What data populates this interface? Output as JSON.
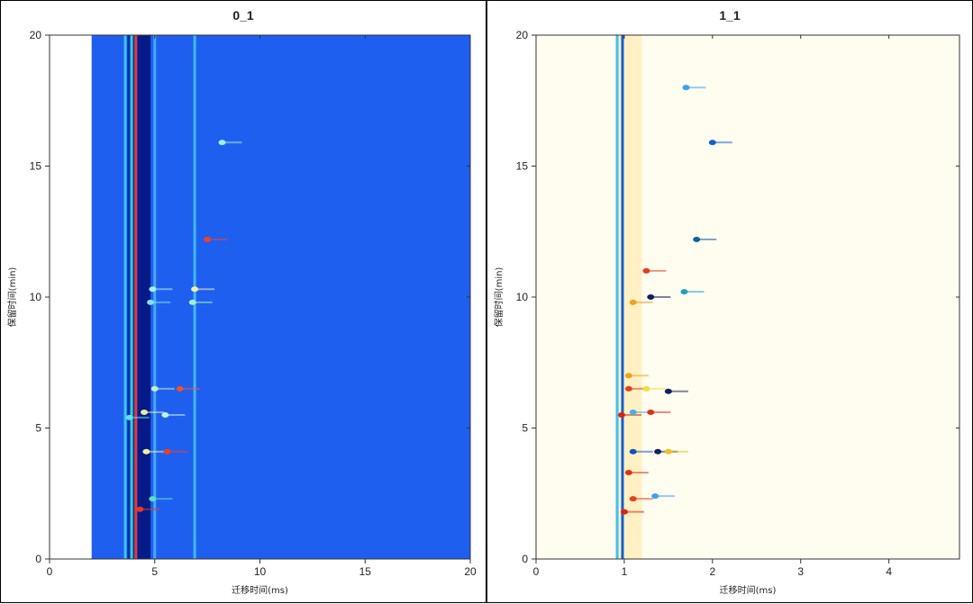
{
  "chart_data": [
    {
      "type": "heatmap",
      "title": "0_1",
      "xlabel": "迁移时间(ms)",
      "ylabel": "保留时间(min)",
      "xlim": [
        0,
        20
      ],
      "ylim": [
        0,
        20
      ],
      "xticks": [
        0,
        5,
        10,
        15,
        20
      ],
      "yticks": [
        0,
        5,
        10,
        15,
        20
      ],
      "data_x_start": 2.0,
      "background_color": "#1f5ff0",
      "reactant_ion_peak": {
        "x_center": 4.2,
        "x_range": [
          3.7,
          4.8
        ]
      },
      "vertical_lines": [
        {
          "x": 3.6,
          "color": "#38c7e8"
        },
        {
          "x": 3.9,
          "color": "#35d0c0"
        },
        {
          "x": 4.1,
          "color": "#e8382a"
        },
        {
          "x": 5.0,
          "color": "#44aaf0"
        },
        {
          "x": 6.9,
          "color": "#40b8f0"
        }
      ],
      "spots": [
        {
          "x": 4.3,
          "y": 1.9,
          "color": "#e83a20"
        },
        {
          "x": 4.9,
          "y": 2.3,
          "color": "#58e0c0"
        },
        {
          "x": 4.6,
          "y": 4.1,
          "color": "#f0f0a0"
        },
        {
          "x": 5.6,
          "y": 4.1,
          "color": "#f04020"
        },
        {
          "x": 3.8,
          "y": 5.4,
          "color": "#60e0f0"
        },
        {
          "x": 4.5,
          "y": 5.6,
          "color": "#e0f0a0"
        },
        {
          "x": 5.5,
          "y": 5.5,
          "color": "#c0f0e0"
        },
        {
          "x": 5.0,
          "y": 6.5,
          "color": "#c0f0c0"
        },
        {
          "x": 6.2,
          "y": 6.5,
          "color": "#f05030"
        },
        {
          "x": 4.8,
          "y": 9.8,
          "color": "#80e0f0"
        },
        {
          "x": 6.8,
          "y": 9.8,
          "color": "#a0f0d0"
        },
        {
          "x": 4.9,
          "y": 10.3,
          "color": "#a0f0f0"
        },
        {
          "x": 6.9,
          "y": 10.3,
          "color": "#f0f0a0"
        },
        {
          "x": 7.5,
          "y": 12.2,
          "color": "#f04020"
        },
        {
          "x": 8.2,
          "y": 15.9,
          "color": "#a0f0f0"
        }
      ]
    },
    {
      "type": "heatmap",
      "title": "1_1",
      "xlabel": "迁移时间(ms)",
      "ylabel": "保留时间(min)",
      "xlim": [
        0,
        4.8
      ],
      "ylim": [
        0,
        20
      ],
      "xticks": [
        0,
        1,
        2,
        3,
        4
      ],
      "yticks": [
        0,
        5,
        10,
        15,
        20
      ],
      "background_color": "#fffdf0",
      "reactant_ion_peak": {
        "x_center": 1.0,
        "x_range": [
          0.9,
          1.2
        ]
      },
      "vertical_lines": [
        {
          "x": 0.92,
          "color": "#40c0f0"
        },
        {
          "x": 0.98,
          "color": "#1060d0"
        }
      ],
      "spots": [
        {
          "x": 1.0,
          "y": 1.8,
          "color": "#e02010"
        },
        {
          "x": 1.1,
          "y": 2.3,
          "color": "#e04020"
        },
        {
          "x": 1.35,
          "y": 2.4,
          "color": "#40a0f0"
        },
        {
          "x": 1.05,
          "y": 3.3,
          "color": "#e03010"
        },
        {
          "x": 1.1,
          "y": 4.1,
          "color": "#1050c0"
        },
        {
          "x": 1.38,
          "y": 4.1,
          "color": "#102060"
        },
        {
          "x": 1.5,
          "y": 4.1,
          "color": "#f0c020"
        },
        {
          "x": 0.97,
          "y": 5.5,
          "color": "#e02010"
        },
        {
          "x": 1.1,
          "y": 5.6,
          "color": "#40b0f0"
        },
        {
          "x": 1.3,
          "y": 5.6,
          "color": "#e03010"
        },
        {
          "x": 1.05,
          "y": 6.5,
          "color": "#e04020"
        },
        {
          "x": 1.25,
          "y": 6.5,
          "color": "#f0e040"
        },
        {
          "x": 1.5,
          "y": 6.4,
          "color": "#102060"
        },
        {
          "x": 1.05,
          "y": 7.0,
          "color": "#f0a020"
        },
        {
          "x": 1.1,
          "y": 9.8,
          "color": "#f0a020"
        },
        {
          "x": 1.3,
          "y": 10.0,
          "color": "#102060"
        },
        {
          "x": 1.68,
          "y": 10.2,
          "color": "#20a0c0"
        },
        {
          "x": 1.25,
          "y": 11.0,
          "color": "#e04020"
        },
        {
          "x": 1.82,
          "y": 12.2,
          "color": "#1060a0"
        },
        {
          "x": 2.0,
          "y": 15.9,
          "color": "#1060d0"
        },
        {
          "x": 1.7,
          "y": 18.0,
          "color": "#40a0f0"
        }
      ]
    }
  ]
}
